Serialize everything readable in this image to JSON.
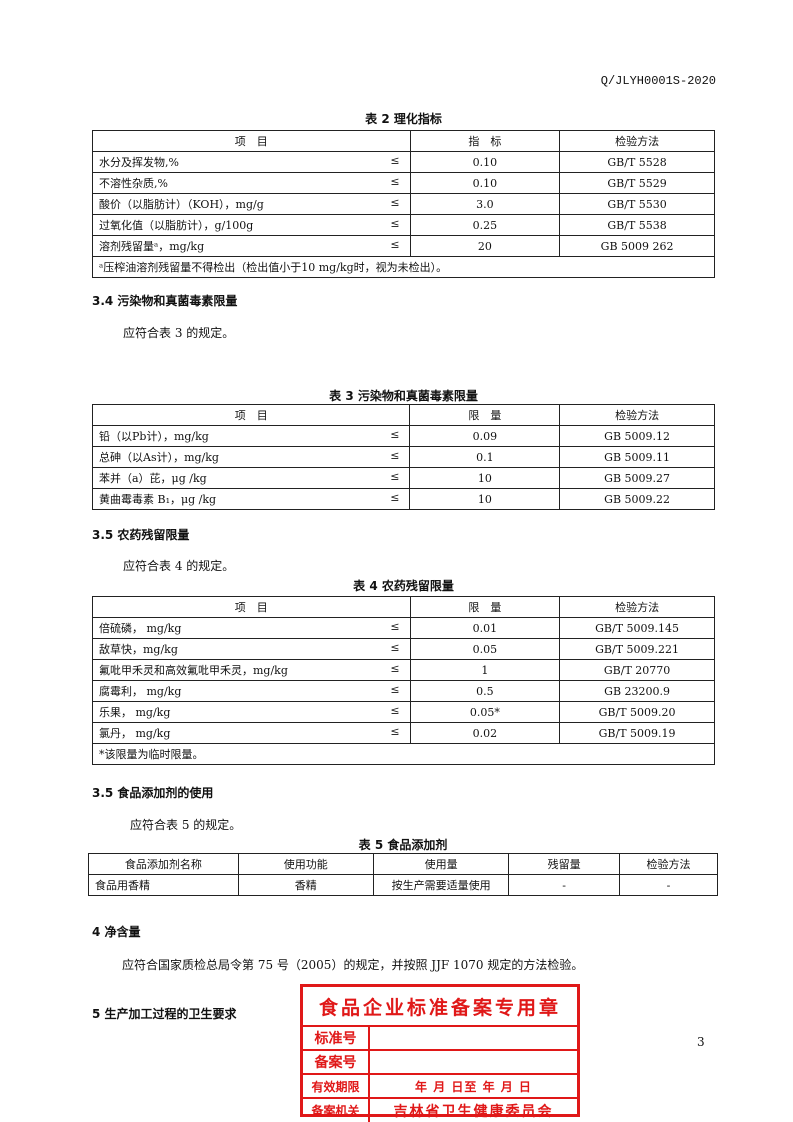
{
  "header": {
    "doc_code": "Q/JLYH0001S-2020"
  },
  "table2": {
    "title": "表 2  理化指标",
    "columns": [
      "项　目",
      "指　标",
      "检验方法"
    ],
    "rows": [
      [
        "水分及挥发物,%",
        "≤",
        "0.10",
        "GB/T 5528"
      ],
      [
        "不溶性杂质,%",
        "≤",
        "0.10",
        "GB/T 5529"
      ],
      [
        "酸价（以脂肪计）（KOH），mg/g",
        "≤",
        "3.0",
        "GB/T 5530"
      ],
      [
        "过氧化值（以脂肪计），g/100g",
        "≤",
        "0.25",
        "GB/T 5538"
      ],
      [
        "溶剂残留量ᵃ，mg/kg",
        "≤",
        "20",
        "GB 5009 262"
      ]
    ],
    "note": "ᵃ压榨油溶剂残留量不得检出（检出值小于10 mg/kg时，视为未检出）。"
  },
  "sec34": {
    "heading": "3.4  污染物和真菌毒素限量",
    "text": "应符合表 3 的规定。"
  },
  "table3": {
    "title": "表 3  污染物和真菌毒素限量",
    "columns": [
      "项　目",
      "限　量",
      "检验方法"
    ],
    "rows": [
      [
        "铅（以Pb计），mg/kg",
        "≤",
        "0.09",
        "GB 5009.12"
      ],
      [
        "总砷（以As计），mg/kg",
        "≤",
        "0.1",
        "GB 5009.11"
      ],
      [
        "苯并（a）芘，μg /kg",
        "≤",
        "10",
        "GB 5009.27"
      ],
      [
        "黄曲霉毒素 B₁，μg /kg",
        "≤",
        "10",
        "GB 5009.22"
      ]
    ]
  },
  "sec35": {
    "heading": "3.5  农药残留限量",
    "text": "应符合表 4 的规定。"
  },
  "table4": {
    "title": "表 4  农药残留限量",
    "columns": [
      "项　目",
      "限　量",
      "检验方法"
    ],
    "rows": [
      [
        "倍硫磷， mg/kg",
        "≤",
        "0.01",
        "GB/T 5009.145"
      ],
      [
        "敌草快，mg/kg",
        "≤",
        "0.05",
        "GB/T 5009.221"
      ],
      [
        "氟吡甲禾灵和高效氟吡甲禾灵，mg/kg",
        "≤",
        "1",
        "GB/T 20770"
      ],
      [
        "腐霉利， mg/kg",
        "≤",
        "0.5",
        "GB 23200.9"
      ],
      [
        "乐果， mg/kg",
        "≤",
        "0.05*",
        "GB/T 5009.20"
      ],
      [
        "氯丹， mg/kg",
        "≤",
        "0.02",
        "GB/T 5009.19"
      ]
    ],
    "note": "*该限量为临时限量。"
  },
  "sec35b": {
    "heading": "3.5  食品添加剂的使用",
    "text": "应符合表 5 的规定。"
  },
  "table5": {
    "title": "表 5  食品添加剂",
    "columns": [
      "食品添加剂名称",
      "使用功能",
      "使用量",
      "残留量",
      "检验方法"
    ],
    "rows": [
      [
        "食品用香精",
        "香精",
        "按生产需要适量使用",
        "-",
        "-"
      ]
    ]
  },
  "sec4": {
    "heading": "4  净含量",
    "text": "应符合国家质检总局令第 75 号（2005）的规定，并按照 JJF 1070 规定的方法检验。"
  },
  "sec5": {
    "heading": "5  生产加工过程的卫生要求"
  },
  "stamp": {
    "title": "食品企业标准备案专用章",
    "rows": [
      {
        "label": "标准号",
        "value": ""
      },
      {
        "label": "备案号",
        "value": ""
      },
      {
        "label": "有效期限",
        "value": "年  月  日至  年  月  日"
      },
      {
        "label": "备案机关",
        "value": "吉林省卫生健康委员会"
      }
    ],
    "color": "#e01818"
  },
  "page_number": "3"
}
